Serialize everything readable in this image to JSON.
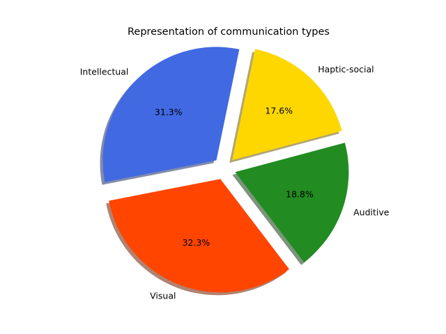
{
  "chart_data": {
    "type": "pie",
    "title": "Representation of communication types",
    "categories": [
      "Haptic-social",
      "Intellectual",
      "Visual",
      "Auditive"
    ],
    "values": [
      17.6,
      31.3,
      32.3,
      18.8
    ],
    "value_labels": [
      "17.6%",
      "31.3%",
      "32.3%",
      "18.8%"
    ],
    "colors": [
      "#FFD700",
      "#4169E1",
      "#FF4500",
      "#228B22"
    ],
    "start_angle_deg": 15,
    "direction": "counterclockwise",
    "exploded": true,
    "shadow": true,
    "legend": "none"
  }
}
